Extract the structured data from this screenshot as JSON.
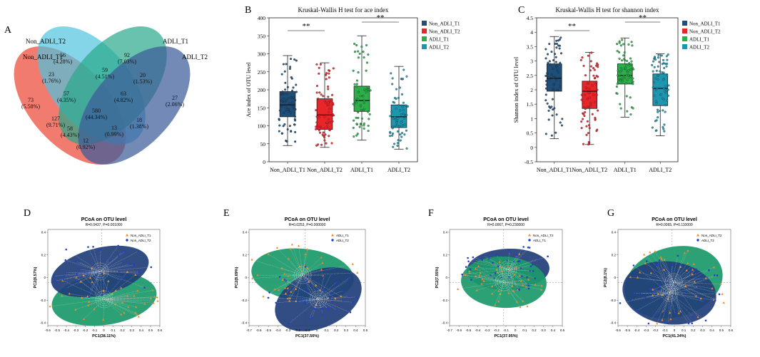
{
  "figure": {
    "panel_letters": [
      "A",
      "B",
      "C",
      "D",
      "E",
      "F",
      "G"
    ]
  },
  "chart_data": [
    {
      "panel": "A",
      "type": "venn",
      "sets": [
        {
          "name": "Non_ADLI_T2",
          "color": "#4fc3dd"
        },
        {
          "name": "Non_ADLI_T1",
          "color": "#ee6456"
        },
        {
          "name": "ADLI_T1",
          "color": "#29a88a"
        },
        {
          "name": "ADLI_T2",
          "color": "#3d5c9a"
        }
      ],
      "regions": [
        {
          "count": "56",
          "pct": "(4.28%)"
        },
        {
          "count": "92",
          "pct": "(7.03%)"
        },
        {
          "count": "23",
          "pct": "(1.76%)"
        },
        {
          "count": "59",
          "pct": "(4.51%)"
        },
        {
          "count": "20",
          "pct": "(1.53%)"
        },
        {
          "count": "57",
          "pct": "(4.35%)"
        },
        {
          "count": "63",
          "pct": "(4.82%)"
        },
        {
          "count": "27",
          "pct": "(2.06%)"
        },
        {
          "count": "73",
          "pct": "(5.58%)"
        },
        {
          "count": "580",
          "pct": "(44.34%)"
        },
        {
          "count": "127",
          "pct": "(9.71%)"
        },
        {
          "count": "18",
          "pct": "(1.38%)"
        },
        {
          "count": "58",
          "pct": "(4.43%)"
        },
        {
          "count": "13",
          "pct": "(0.99%)"
        },
        {
          "count": "12",
          "pct": "(0.92%)"
        }
      ]
    },
    {
      "panel": "B",
      "type": "box",
      "title": "Kruskal-Wallis H test for ace index",
      "ylabel": "Ace index of OTU level",
      "ylim": [
        0,
        400
      ],
      "yticks": [
        "0",
        "50",
        "100",
        "150",
        "200",
        "250",
        "300",
        "350",
        "400"
      ],
      "categories": [
        "Non_ADLI_T1",
        "Non_ADLI_T2",
        "ADLI_T1",
        "ADLI_T2"
      ],
      "colors": [
        "#1f4e79",
        "#e8262a",
        "#2eae4a",
        "#1e96b0"
      ],
      "boxes": [
        {
          "min": 45,
          "q1": 125,
          "median": 158,
          "q3": 195,
          "max": 295
        },
        {
          "min": 40,
          "q1": 90,
          "median": 130,
          "q3": 175,
          "max": 275
        },
        {
          "min": 60,
          "q1": 140,
          "median": 170,
          "q3": 210,
          "max": 350
        },
        {
          "min": 35,
          "q1": 95,
          "median": 125,
          "q3": 158,
          "max": 265
        }
      ],
      "significance": [
        {
          "from": 0,
          "to": 1,
          "label": "**"
        },
        {
          "from": 2,
          "to": 3,
          "label": "**"
        }
      ],
      "legend": [
        "Non_ADLI_T1",
        "Non_ADLI_T2",
        "ADLI_T1",
        "ADLI_T2"
      ]
    },
    {
      "panel": "C",
      "type": "box",
      "title": "Kruskal-Wallis H test for shannon index",
      "ylabel": "Shannon index of OTU level",
      "ylim": [
        -0.5,
        4.5
      ],
      "yticks": [
        "-0.5",
        "0",
        "0.5",
        "1",
        "1.5",
        "2",
        "2.5",
        "3",
        "3.5",
        "4",
        "4.5"
      ],
      "categories": [
        "Non_ADLI_T1",
        "Non_ADLI_T2",
        "ADLI_T1",
        "ADLI_T2"
      ],
      "colors": [
        "#1f4e79",
        "#e8262a",
        "#2eae4a",
        "#1e96b0"
      ],
      "boxes": [
        {
          "min": 0.3,
          "q1": 1.95,
          "median": 2.4,
          "q3": 2.9,
          "max": 3.85
        },
        {
          "min": 0.1,
          "q1": 1.35,
          "median": 1.95,
          "q3": 2.3,
          "max": 3.3
        },
        {
          "min": 1.05,
          "q1": 2.2,
          "median": 2.5,
          "q3": 2.9,
          "max": 3.8
        },
        {
          "min": 0.4,
          "q1": 1.45,
          "median": 2.05,
          "q3": 2.55,
          "max": 3.25
        }
      ],
      "significance": [
        {
          "from": 0,
          "to": 1,
          "label": "**"
        },
        {
          "from": 2,
          "to": 3,
          "label": "**"
        }
      ],
      "legend": [
        "Non_ADLI_T1",
        "Non_ADLI_T2",
        "ADLI_T1",
        "ADLI_T2"
      ]
    },
    {
      "panel": "D",
      "type": "scatter",
      "title": "PCoA on OTU level",
      "subtitle": "R=0.0437, P=0.001000",
      "xlabel": "PC1(38.11%)",
      "ylabel": "PC2(8.57%)",
      "xticks": [
        "-0.6",
        "-0.5",
        "-0.4",
        "-0.3",
        "-0.2",
        "-0.1",
        "0",
        "0.1",
        "0.2",
        "0.3",
        "0.4",
        "0.5",
        "0.6"
      ],
      "yticks": [
        "0.4",
        "0.2",
        "0",
        "-0.2",
        "-0.4"
      ],
      "legend": [
        {
          "name": "Non_ADLI_T1",
          "color": "#f08a24",
          "marker": "triangle"
        },
        {
          "name": "Non_ADLI_T2",
          "color": "#2340c8",
          "marker": "circle"
        }
      ],
      "groups": [
        {
          "name": "Non_ADLI_T1",
          "ellipse_fill": "#1d9a6c",
          "center": [
            0.0,
            -0.11
          ]
        },
        {
          "name": "Non_ADLI_T2",
          "ellipse_fill": "#223f7a",
          "center": [
            0.0,
            0.08
          ]
        }
      ]
    },
    {
      "panel": "E",
      "type": "scatter",
      "title": "PCoA on OTU level",
      "subtitle": "R=0.0253, P=0.000000",
      "xlabel": "PC1(37.56%)",
      "ylabel": "PC2(8.69%)",
      "xticks": [
        "-0.7",
        "-0.6",
        "-0.5",
        "-0.4",
        "-0.3",
        "-0.2",
        "-0.1",
        "0",
        "0.1",
        "0.2",
        "0.3",
        "0.4",
        "0.5"
      ],
      "yticks": [
        "0.4",
        "0.2",
        "0",
        "-0.2",
        "-0.4"
      ],
      "legend": [
        {
          "name": "ADLI_T1",
          "color": "#f08a24",
          "marker": "triangle"
        },
        {
          "name": "ADLI_T2",
          "color": "#2340c8",
          "marker": "circle"
        }
      ],
      "groups": [
        {
          "name": "ADLI_T1",
          "ellipse_fill": "#1d9a6c",
          "center": [
            -0.1,
            0.06
          ]
        },
        {
          "name": "ADLI_T2",
          "ellipse_fill": "#223f7a",
          "center": [
            0.02,
            -0.06
          ]
        }
      ]
    },
    {
      "panel": "F",
      "type": "scatter",
      "title": "PCoA on OTU level",
      "subtitle": "R=0.0067, P=0.230000",
      "xlabel": "PC1(37.95%)",
      "ylabel": "PC2(7.55%)",
      "xticks": [
        "-0.7",
        "-0.6",
        "-0.5",
        "-0.4",
        "-0.3",
        "-0.2",
        "-0.1",
        "0",
        "0.1",
        "0.2",
        "0.3",
        "0.4",
        "0.5"
      ],
      "yticks": [
        "0.4",
        "0.2",
        "0",
        "-0.2",
        "-0.4"
      ],
      "legend": [
        {
          "name": "Non_ADLI_T2",
          "color": "#f08a24",
          "marker": "triangle"
        },
        {
          "name": "ADLI_T1",
          "color": "#2340c8",
          "marker": "circle"
        }
      ],
      "groups": [
        {
          "name": "ADLI_T1",
          "ellipse_fill": "#223f7a",
          "center": [
            0.02,
            0.04
          ]
        },
        {
          "name": "Non_ADLI_T2",
          "ellipse_fill": "#1d9a6c",
          "center": [
            0.0,
            -0.02
          ]
        }
      ]
    },
    {
      "panel": "G",
      "type": "scatter",
      "title": "PCoA on OTU level",
      "subtitle": "R=0.0065, P=0.110000",
      "xlabel": "PC1(41.34%)",
      "ylabel": "PC2(8.1%)",
      "xticks": [
        "-0.6",
        "-0.5",
        "-0.4",
        "-0.3",
        "-0.2",
        "-0.1",
        "0",
        "0.1",
        "0.2",
        "0.3",
        "0.4",
        "0.5",
        "0.6"
      ],
      "yticks": [
        "0.4",
        "0.2",
        "0",
        "-0.2",
        "-0.4"
      ],
      "legend": [
        {
          "name": "Non_ADLI_T2",
          "color": "#f08a24",
          "marker": "triangle"
        },
        {
          "name": "ADLI_T2",
          "color": "#2340c8",
          "marker": "circle"
        }
      ],
      "groups": [
        {
          "name": "Non_ADLI_T2",
          "ellipse_fill": "#1d9a6c",
          "center": [
            0.03,
            0.03
          ]
        },
        {
          "name": "ADLI_T2",
          "ellipse_fill": "#223f7a",
          "center": [
            -0.02,
            -0.04
          ]
        }
      ]
    }
  ]
}
